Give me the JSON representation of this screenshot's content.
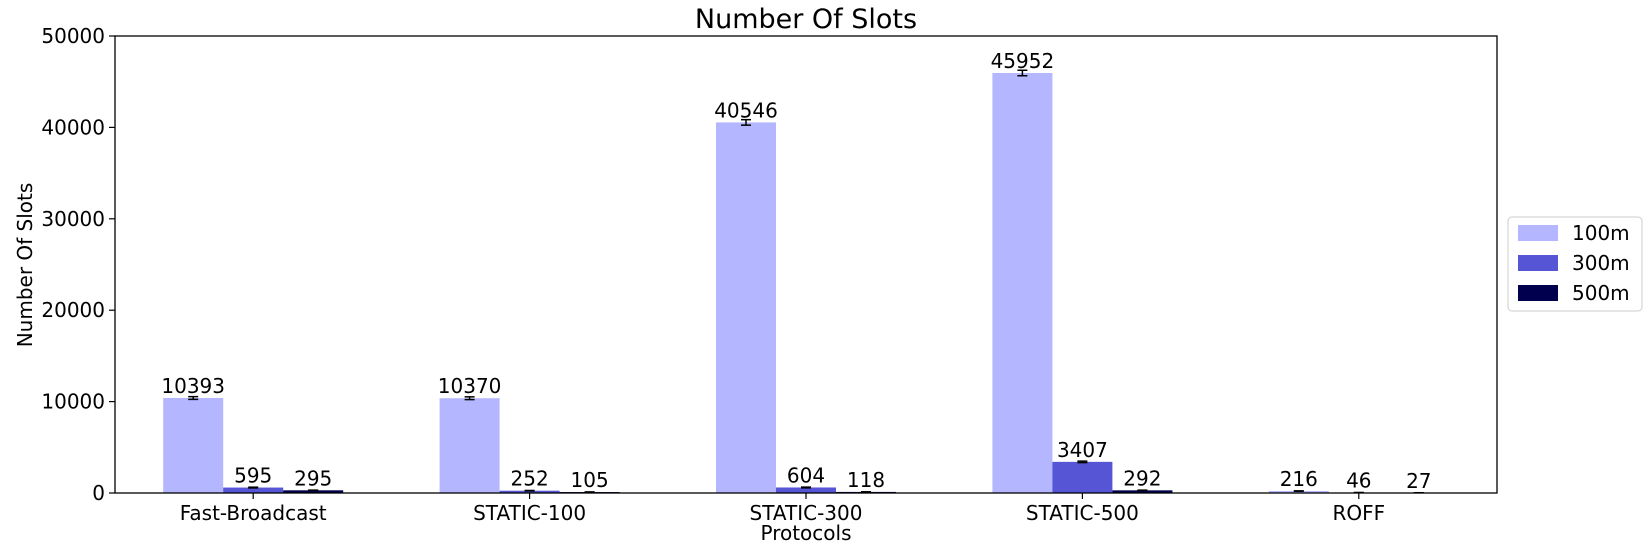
{
  "chart_data": {
    "type": "bar",
    "title": "Number Of Slots",
    "xlabel": "Protocols",
    "ylabel": "Number Of Slots",
    "categories": [
      "Fast-Broadcast",
      "STATIC-100",
      "STATIC-300",
      "STATIC-500",
      "ROFF"
    ],
    "ylim": [
      0,
      50000
    ],
    "yticks": [
      0,
      10000,
      20000,
      30000,
      40000,
      50000
    ],
    "legend_position": "right",
    "series": [
      {
        "name": "100m",
        "color": "#b4b7ff",
        "values": [
          10393,
          10370,
          40546,
          45952,
          216
        ],
        "errors": [
          150,
          150,
          300,
          300,
          20
        ]
      },
      {
        "name": "300m",
        "color": "#5555d6",
        "values": [
          595,
          252,
          604,
          3407,
          46
        ],
        "errors": [
          40,
          25,
          40,
          80,
          5
        ]
      },
      {
        "name": "500m",
        "color": "#00004f",
        "values": [
          295,
          105,
          118,
          292,
          27
        ],
        "errors": [
          20,
          10,
          10,
          20,
          3
        ]
      }
    ]
  }
}
